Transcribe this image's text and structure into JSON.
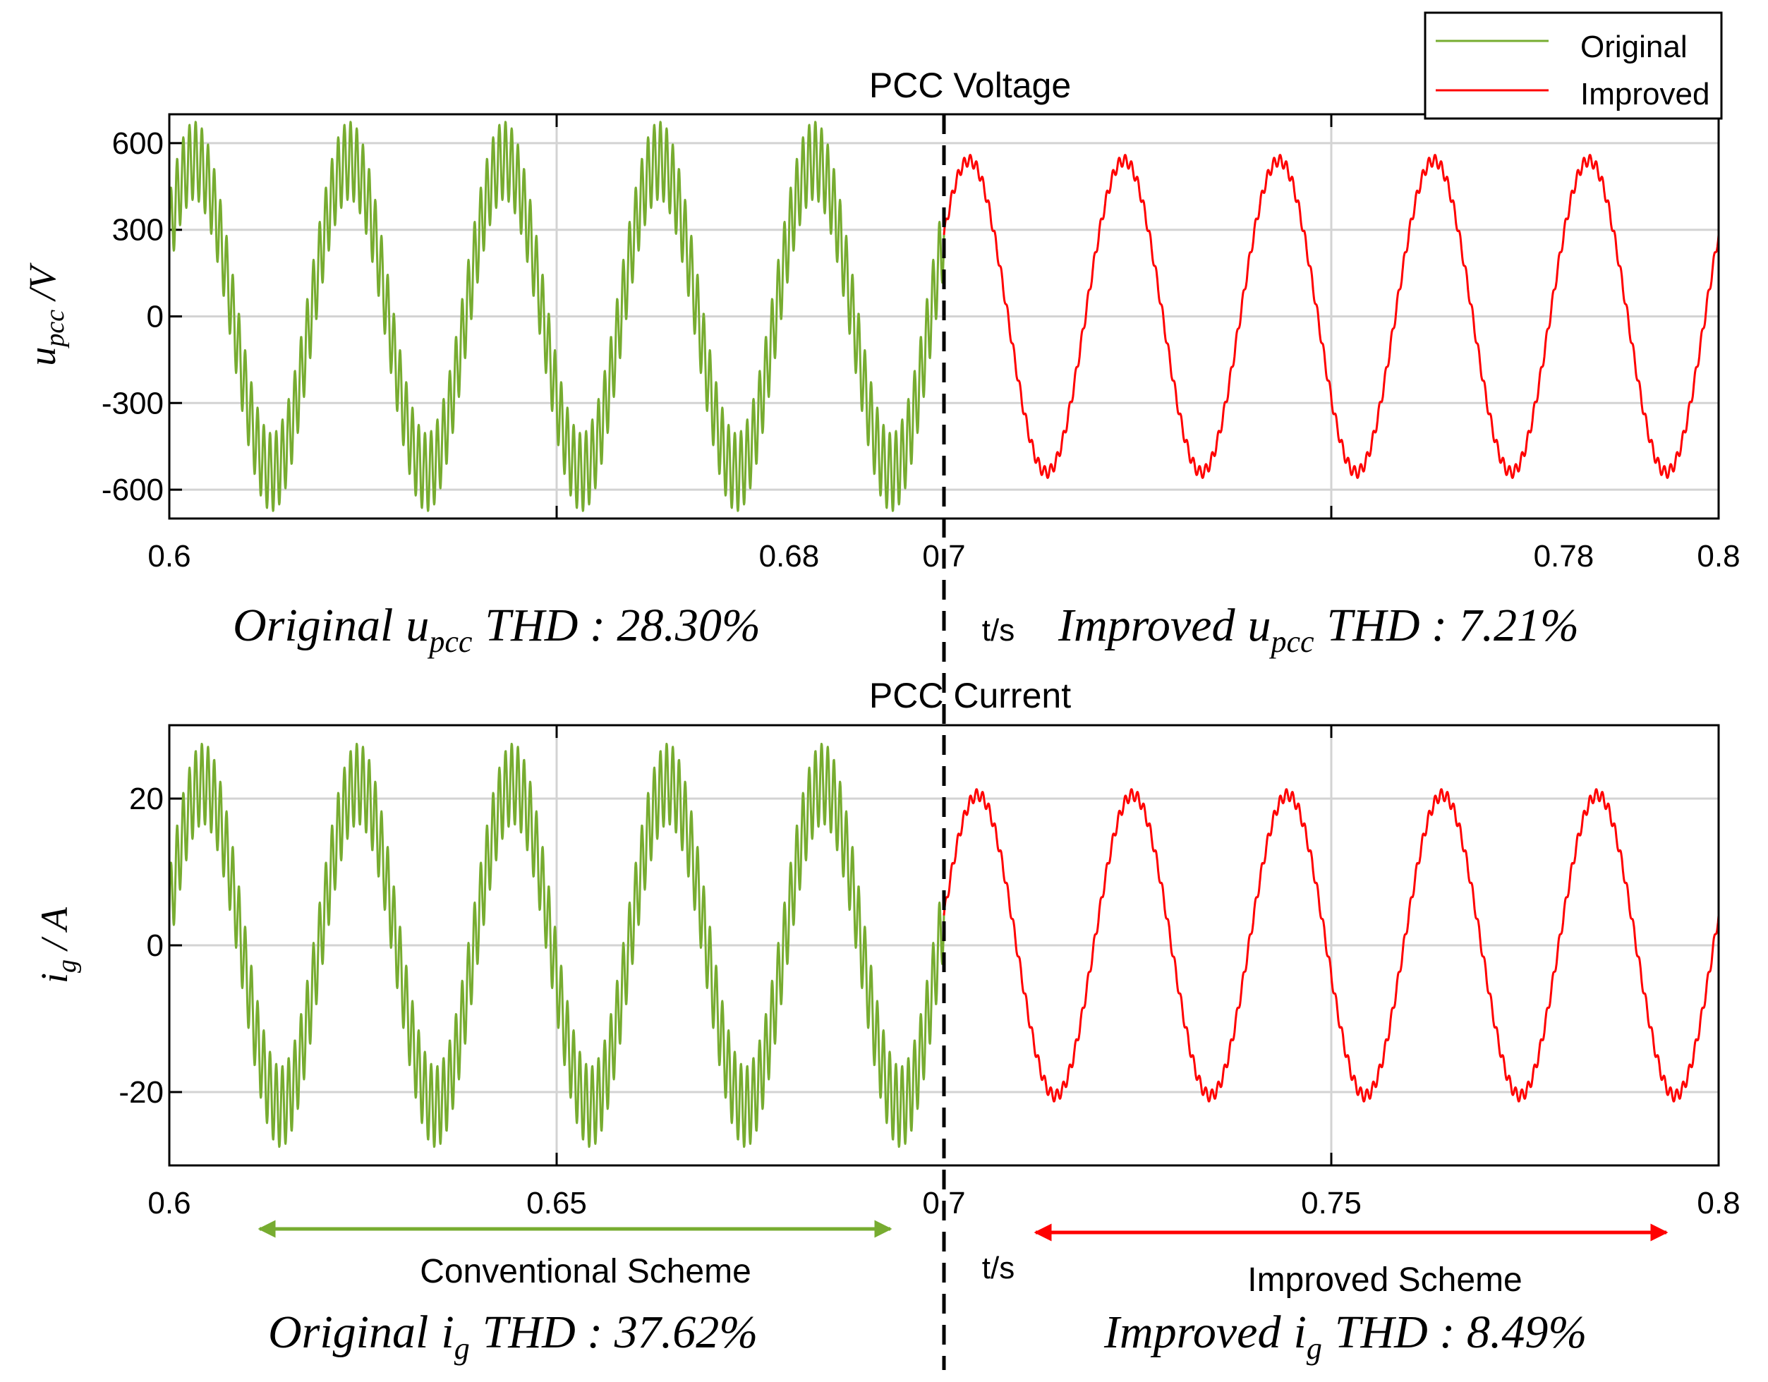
{
  "colors": {
    "original": "#77AC30",
    "improved": "#FF0000",
    "grid": "#D3D3D3",
    "axis": "#000000"
  },
  "legend": {
    "original": "Original",
    "improved": "Improved"
  },
  "chart_data": [
    {
      "type": "line",
      "title": "PCC Voltage",
      "ylabel": "u_pcc /V",
      "ylabel_main": "u",
      "ylabel_sub": "pcc",
      "ylabel_unit": " /V",
      "xlabel": "t/s",
      "xlim": [
        0.6,
        0.8
      ],
      "ylim": [
        -700,
        700
      ],
      "xticks": [
        0.6,
        0.68,
        0.7,
        0.78,
        0.8
      ],
      "xtick_labels": [
        "0.6",
        "0.68",
        "0.7",
        "0.78",
        "0.8"
      ],
      "xgrid": [
        0.65,
        0.75
      ],
      "yticks": [
        600,
        300,
        0,
        -300,
        -600
      ],
      "ytick_labels": [
        "600",
        "300",
        "0",
        "-300",
        "-600"
      ],
      "divider_t": 0.7,
      "series": [
        {
          "name": "Original",
          "t_range": [
            0.6,
            0.7
          ],
          "frequency_hz": 50,
          "fundamental_amplitude": 540,
          "ripple_amplitude": 135,
          "ripple_frequency_hz": 1250,
          "offset_rad": 0.55,
          "thd_percent": 28.3
        },
        {
          "name": "Improved",
          "t_range": [
            0.7,
            0.8
          ],
          "frequency_hz": 50,
          "fundamental_amplitude": 540,
          "ripple_amplitude": 20,
          "ripple_frequency_hz": 1250,
          "offset_rad": 0.55,
          "thd_percent": 7.21
        }
      ],
      "annotations": {
        "left_word": "Original",
        "left_var": "u",
        "left_sub": "pcc",
        "left_value": "THD : 28.30%",
        "right_word": "Improved",
        "right_var": "u",
        "right_sub": "pcc",
        "right_value": "THD : 7.21%"
      }
    },
    {
      "type": "line",
      "title": "PCC Current",
      "ylabel": "i_g / A",
      "ylabel_main": "i",
      "ylabel_sub": "g",
      "ylabel_unit": " / A",
      "xlabel": "t/s",
      "xlim": [
        0.6,
        0.8
      ],
      "ylim": [
        -30,
        30
      ],
      "xticks": [
        0.6,
        0.65,
        0.7,
        0.75,
        0.8
      ],
      "xtick_labels": [
        "0.6",
        "0.65",
        "0.7",
        "0.75",
        "0.8"
      ],
      "xgrid": [
        0.65,
        0.75
      ],
      "yticks": [
        20,
        0,
        -20
      ],
      "ytick_labels": [
        "20",
        "0",
        "-20"
      ],
      "divider_t": 0.7,
      "series": [
        {
          "name": "Original",
          "t_range": [
            0.6,
            0.7
          ],
          "frequency_hz": 50,
          "fundamental_amplitude": 22,
          "ripple_amplitude": 5.5,
          "ripple_frequency_hz": 1250,
          "offset_rad": 0.2,
          "thd_percent": 37.62
        },
        {
          "name": "Improved",
          "t_range": [
            0.7,
            0.8
          ],
          "frequency_hz": 50,
          "fundamental_amplitude": 20.5,
          "ripple_amplitude": 0.8,
          "ripple_frequency_hz": 1250,
          "offset_rad": 0.2,
          "thd_percent": 8.49
        }
      ],
      "annotations": {
        "left_word": "Original",
        "left_var": "i",
        "left_sub": "g",
        "left_value": "THD : 37.62%",
        "right_word": "Improved",
        "right_var": "i",
        "right_sub": "g",
        "right_value": "THD : 8.49%"
      },
      "schemes": {
        "left": "Conventional Scheme",
        "right": "Improved Scheme"
      }
    }
  ]
}
